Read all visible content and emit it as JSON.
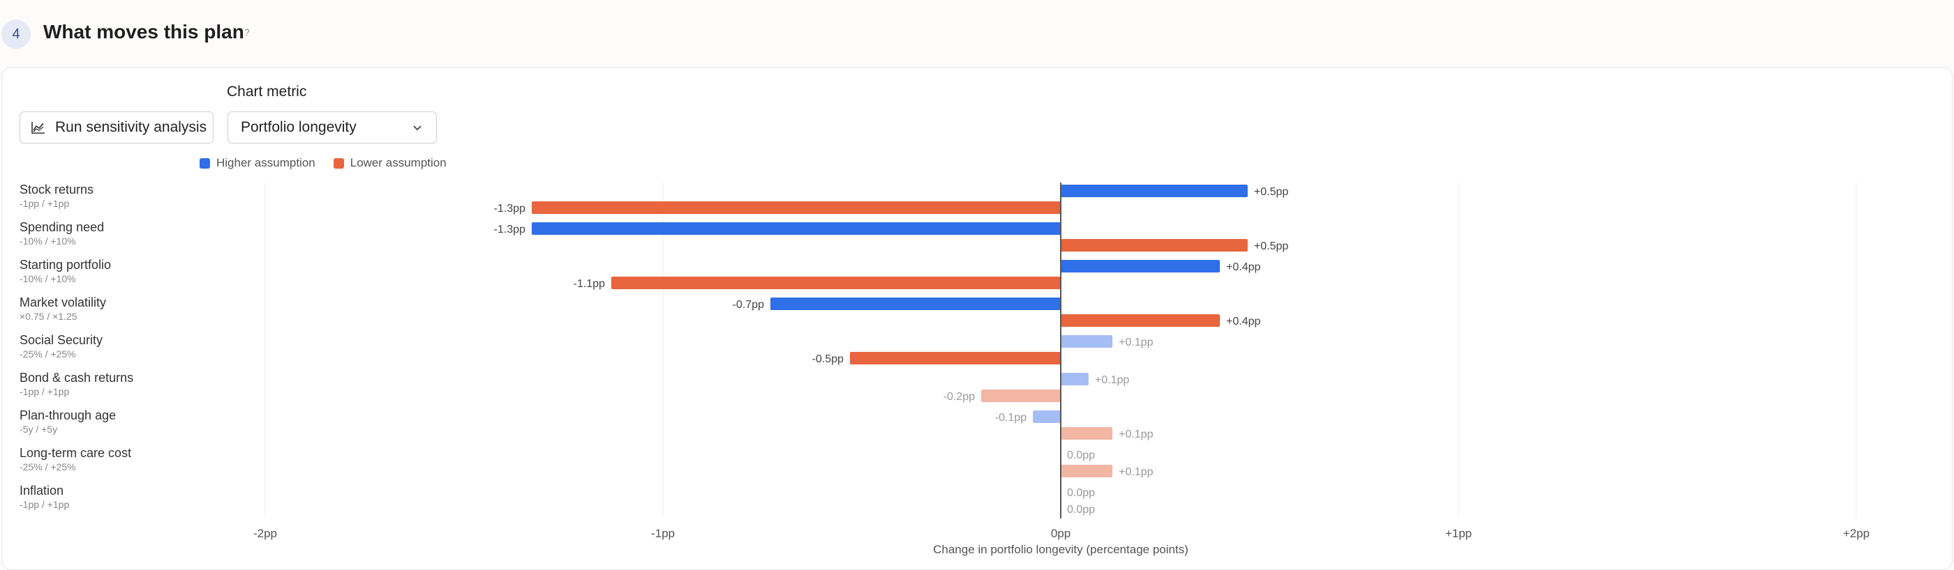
{
  "section": {
    "step_number": "4",
    "title": "What moves this plan",
    "help": "?"
  },
  "controls": {
    "run_button_label": "Run sensitivity analysis",
    "run_button_icon": "area-chart-icon",
    "chart_metric_label": "Chart metric",
    "chart_metric_value": "Portfolio longevity"
  },
  "colors": {
    "higher": "#2f6fe8",
    "lower": "#e8653d",
    "higher_muted": "#a5bdf5",
    "lower_muted": "#f2b6a3"
  },
  "chart_data": {
    "type": "bar",
    "orientation": "horizontal",
    "xlabel": "Change in portfolio longevity (percentage points)",
    "xlim": [
      -2,
      2
    ],
    "xticks": [
      -2,
      -1,
      0,
      1,
      2
    ],
    "xtick_labels": [
      "-2pp",
      "-1pp",
      "0pp",
      "+1pp",
      "+2pp"
    ],
    "legend": [
      "Higher assumption",
      "Lower assumption"
    ],
    "legend_placement": "top",
    "grid": true,
    "rows": [
      {
        "name": "Stock returns",
        "range": "-1pp / +1pp",
        "higher": 0.47,
        "higher_label": "+0.5pp",
        "lower": -1.33,
        "lower_label": "-1.3pp",
        "muted": false
      },
      {
        "name": "Spending need",
        "range": "-10% / +10%",
        "higher": -1.33,
        "higher_label": "-1.3pp",
        "lower": 0.47,
        "lower_label": "+0.5pp",
        "muted": false
      },
      {
        "name": "Starting portfolio",
        "range": "-10% / +10%",
        "higher": 0.4,
        "higher_label": "+0.4pp",
        "lower": -1.13,
        "lower_label": "-1.1pp",
        "muted": false
      },
      {
        "name": "Market volatility",
        "range": "×0.75 / ×1.25",
        "higher": -0.73,
        "higher_label": "-0.7pp",
        "lower": 0.4,
        "lower_label": "+0.4pp",
        "muted": false
      },
      {
        "name": "Social Security",
        "range": "-25% / +25%",
        "higher": 0.13,
        "higher_label": "+0.1pp",
        "lower": -0.53,
        "lower_label": "-0.5pp",
        "muted": "higher"
      },
      {
        "name": "Bond & cash returns",
        "range": "-1pp / +1pp",
        "higher": 0.07,
        "higher_label": "+0.1pp",
        "lower": -0.2,
        "lower_label": "-0.2pp",
        "muted": "both"
      },
      {
        "name": "Plan-through age",
        "range": "-5y / +5y",
        "higher": -0.07,
        "higher_label": "-0.1pp",
        "lower": 0.13,
        "lower_label": "+0.1pp",
        "muted": "both"
      },
      {
        "name": "Long-term care cost",
        "range": "-25% / +25%",
        "higher": 0.0,
        "higher_label": "0.0pp",
        "lower": 0.13,
        "lower_label": "+0.1pp",
        "muted": "both"
      },
      {
        "name": "Inflation",
        "range": "-1pp / +1pp",
        "higher": 0.0,
        "higher_label": "0.0pp",
        "lower": 0.0,
        "lower_label": "0.0pp",
        "muted": "both"
      }
    ]
  }
}
